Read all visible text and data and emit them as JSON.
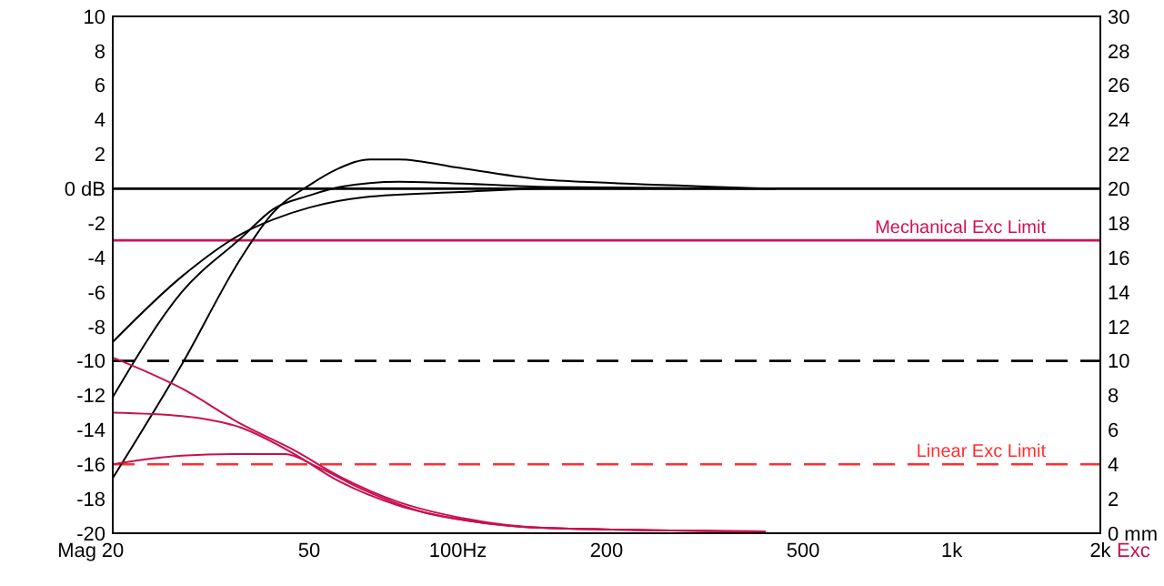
{
  "chart_data": {
    "type": "line",
    "ylabel": "Mag",
    "y2label": "Exc",
    "log": "x",
    "grid": false,
    "line_style": "solid",
    "xlim": [
      20,
      2000
    ],
    "xticks": [
      20,
      50,
      {
        "value": 100,
        "label": "100Hz"
      },
      200,
      500,
      {
        "value": 1000,
        "label": "1k"
      },
      {
        "value": 2000,
        "label": "2k"
      }
    ],
    "ylim": [
      -20,
      10
    ],
    "yticks": [
      -20,
      -18,
      -16,
      -14,
      -12,
      -10,
      -8,
      -6,
      -4,
      -2,
      {
        "value": 0,
        "label": "0 dB"
      },
      2,
      4,
      6,
      8,
      10
    ],
    "y2lim": [
      0,
      30
    ],
    "y2ticks": [
      {
        "value": 0,
        "label": "0 mm"
      },
      2,
      4,
      6,
      8,
      10,
      12,
      14,
      16,
      18,
      20,
      22,
      24,
      26,
      28,
      30
    ],
    "ref_lines": [
      {
        "axis": "y",
        "value": 0,
        "color": "#000000",
        "line_style": "solid"
      },
      {
        "axis": "y2",
        "value": 17,
        "label": "Mechanical Exc Limit",
        "color": "#d0105a",
        "line_style": "solid"
      },
      {
        "axis": "y2",
        "value": 10,
        "color": "#000000",
        "line_style": "dashed"
      },
      {
        "axis": "y2",
        "value": 4,
        "label": "Linear Exc Limit",
        "color": "#ff3030",
        "line_style": "dashed"
      }
    ],
    "series": [
      {
        "color": "#000000",
        "axis": "y",
        "x": [
          20,
          27.6,
          36.6,
          42.2,
          50,
          57.6,
          66.3,
          76,
          101,
          152,
          179,
          440
        ],
        "values": [
          -16.8,
          -10.2,
          -3.9,
          -1.4,
          0.2,
          1.2,
          1.7,
          1.7,
          1.2,
          0.5,
          0.4,
          0
        ]
      },
      {
        "color": "#000000",
        "axis": "y",
        "x": [
          20,
          27.6,
          36.6,
          42.2,
          50,
          57.6,
          76,
          101,
          152,
          440
        ],
        "values": [
          -12.1,
          -6,
          -2.8,
          -1.2,
          -0.4,
          0.1,
          0.4,
          0.3,
          0.1,
          0
        ]
      },
      {
        "color": "#000000",
        "axis": "y",
        "x": [
          20,
          27.6,
          36.6,
          42.2,
          50,
          64.6,
          101,
          152,
          440
        ],
        "values": [
          -8.9,
          -5.1,
          -2.6,
          -1.8,
          -1.1,
          -0.5,
          -0.2,
          0,
          0
        ]
      },
      {
        "color": "#c8104e",
        "axis": "y2",
        "x": [
          20,
          27.6,
          36.6,
          46,
          57.6,
          76,
          101,
          152,
          420
        ],
        "values": [
          10.2,
          8.4,
          6.3,
          4.9,
          3.3,
          1.8,
          0.9,
          0.3,
          0.1
        ]
      },
      {
        "color": "#c8104e",
        "axis": "y2",
        "x": [
          20,
          27.6,
          36.6,
          46,
          57.6,
          76,
          101,
          152,
          420
        ],
        "values": [
          7,
          6.8,
          6.1,
          4.7,
          3,
          1.6,
          0.8,
          0.3,
          0.1
        ]
      },
      {
        "color": "#c8104e",
        "axis": "y2",
        "x": [
          20,
          27.6,
          36.6,
          44.7,
          51.5,
          64.6,
          85.6,
          113,
          152,
          420
        ],
        "values": [
          4,
          4.5,
          4.6,
          4.6,
          3.9,
          2.5,
          1.2,
          0.6,
          0.3,
          0.1
        ]
      }
    ]
  }
}
